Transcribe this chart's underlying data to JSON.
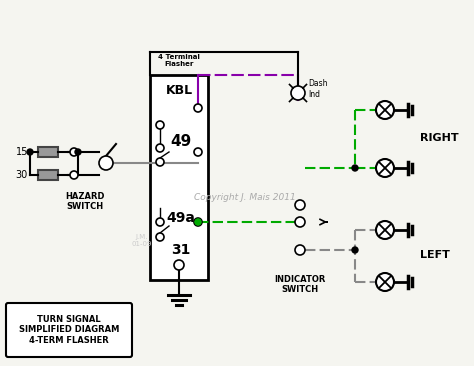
{
  "bg_color": "#f5f5f0",
  "wire_black": "#000000",
  "wire_green": "#00aa00",
  "wire_blue": "#4444ff",
  "wire_gray": "#888888",
  "wire_purple": "#8800aa",
  "copyright": "Copyright J. Mais 2011",
  "label_box_title": "TURN SIGNAL\nSIMPLIFIED DIAGRAM\n4-TERM FLASHER",
  "flasher_label": "4 Terminal\nFlasher",
  "dash_label": "Dash\nInd",
  "author": "J.M.\n01-09"
}
